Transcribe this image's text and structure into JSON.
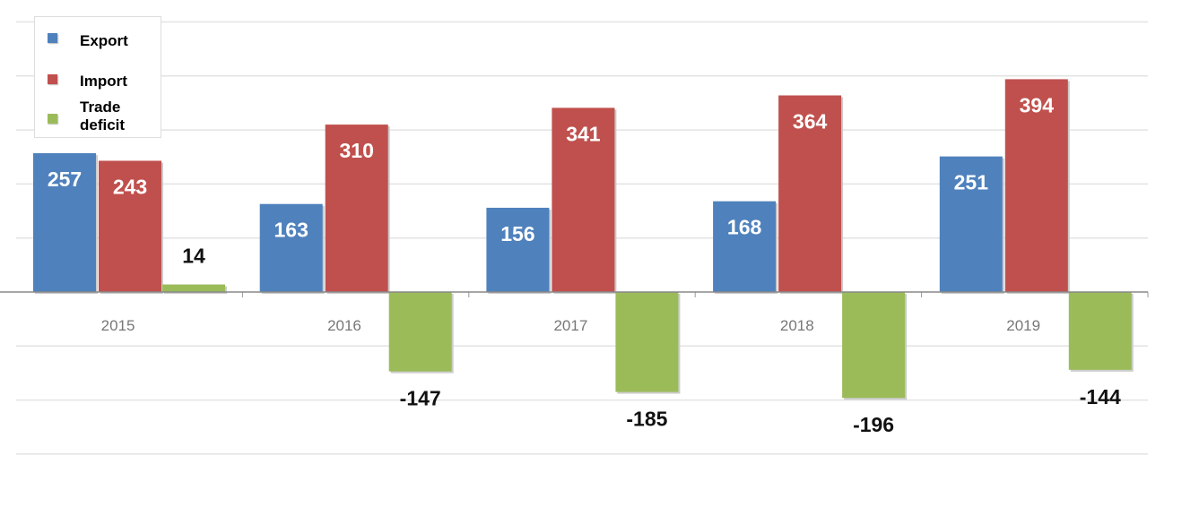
{
  "chart_data": {
    "type": "bar",
    "title": "",
    "xlabel": "",
    "ylabel": "",
    "categories": [
      "2015",
      "2016",
      "2017",
      "2018",
      "2019"
    ],
    "series": [
      {
        "name": "Export",
        "color": "#4f81bd",
        "values": [
          257,
          163,
          156,
          168,
          251
        ]
      },
      {
        "name": "Import",
        "color": "#c0504d",
        "values": [
          243,
          310,
          341,
          364,
          394
        ]
      },
      {
        "name": "Trade deficit",
        "color": "#9bbb59",
        "values": [
          14,
          -147,
          -185,
          -196,
          -144
        ]
      }
    ],
    "ylim": [
      -300,
      500
    ],
    "grid": true,
    "legend": "top-left"
  }
}
